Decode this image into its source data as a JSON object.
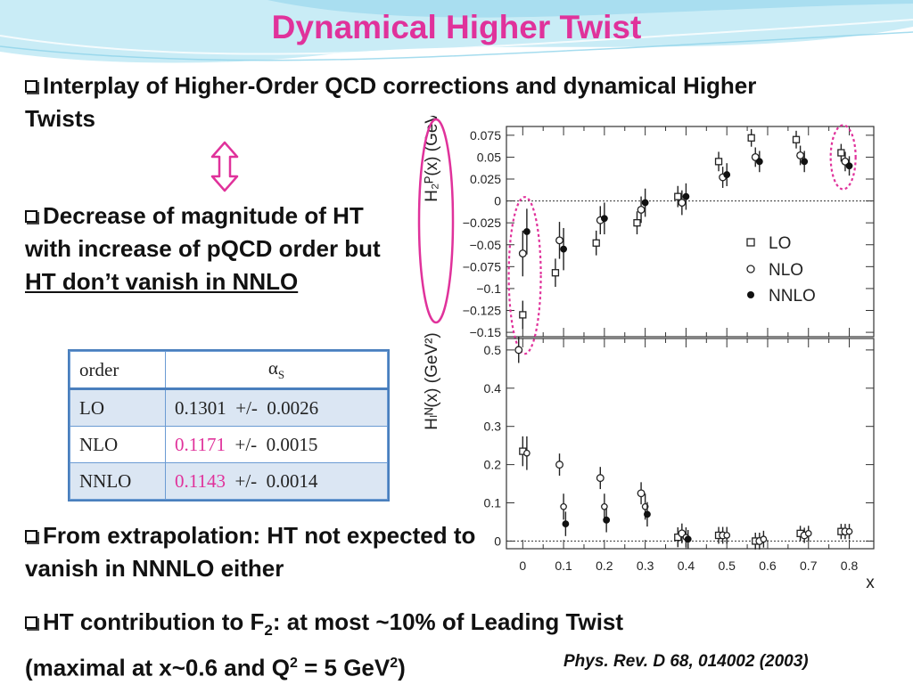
{
  "slide": {
    "title": "Dynamical Higher Twist",
    "bullets": {
      "b1": "Interplay of Higher-Order QCD corrections and dynamical Higher Twists",
      "b2_plain": "Decrease of magnitude of HT with increase of pQCD order but ",
      "b2_underlined": "HT don’t vanish in NNLO",
      "b3": "From extrapolation: HT not expected to vanish in NNNLO either",
      "b4_part1": "HT contribution to F",
      "b4_sub": "2",
      "b4_part2": ": at most ~10% of Leading Twist",
      "b4_part3": "(maximal at x~0.6 and Q",
      "b4_sup1": "2",
      "b4_part4": " = 5 GeV",
      "b4_sup2": "2",
      "b4_part5": ")"
    },
    "reference": "Phys. Rev. D 68, 014002 (2003)",
    "colors": {
      "title": "#e0329b",
      "highlight": "#e0329b",
      "table_border": "#4a7fbd",
      "table_shade": "#dbe6f3"
    }
  },
  "table": {
    "header": {
      "col1": "order",
      "col2": "α",
      "col2_sub": "S"
    },
    "rows": [
      {
        "order": "LO",
        "alpha": "0.1301",
        "sep": "  +/-  ",
        "err": "0.0026",
        "alpha_highlight": false
      },
      {
        "order": "NLO",
        "alpha": "0.1171",
        "sep": "  +/-  ",
        "err": "0.0015",
        "alpha_highlight": true
      },
      {
        "order": "NNLO",
        "alpha": "0.1143",
        "sep": "  +/-  ",
        "err": "0.0014",
        "alpha_highlight": true
      }
    ]
  },
  "chart_data": [
    {
      "type": "scatter",
      "ylabel": "H₂ᴾ(x)  (GeV²)",
      "xlim": [
        -0.04,
        0.86
      ],
      "ylim": [
        -0.155,
        0.085
      ],
      "yticks": [
        0.075,
        0.05,
        0.025,
        0,
        -0.025,
        -0.05,
        -0.075,
        -0.1,
        -0.125,
        -0.15
      ],
      "ytick_labels": [
        "0.075",
        "0.05",
        "0.025",
        "0",
        "−0.025",
        "−0.05",
        "−0.075",
        "−0.1",
        "−0.125",
        "−0.15"
      ],
      "reference_line": 0,
      "legend": [
        "LO",
        "NLO",
        "NNLO"
      ],
      "series": [
        {
          "name": "LO",
          "marker": "open-square",
          "x": [
            0.0,
            0.08,
            0.18,
            0.28,
            0.38,
            0.48,
            0.56,
            0.67,
            0.78
          ],
          "y": [
            -0.13,
            -0.082,
            -0.048,
            -0.025,
            0.005,
            0.045,
            0.072,
            0.07,
            0.055
          ],
          "err": [
            0.01,
            0.01,
            0.008,
            0.007,
            0.006,
            0.005,
            0.004,
            0.004,
            0.004
          ]
        },
        {
          "name": "NLO",
          "marker": "open-circle",
          "x": [
            0.0,
            0.09,
            0.19,
            0.29,
            0.39,
            0.49,
            0.57,
            0.68,
            0.79
          ],
          "y": [
            -0.06,
            -0.045,
            -0.022,
            -0.01,
            -0.002,
            0.027,
            0.05,
            0.052,
            0.045
          ],
          "err": [
            0.02,
            0.015,
            0.01,
            0.009,
            0.008,
            0.006,
            0.005,
            0.005,
            0.005
          ]
        },
        {
          "name": "NNLO",
          "marker": "filled-circle",
          "x": [
            0.01,
            0.1,
            0.2,
            0.3,
            0.4,
            0.5,
            0.58,
            0.69,
            0.8
          ],
          "y": [
            -0.035,
            -0.055,
            -0.02,
            -0.002,
            0.005,
            0.03,
            0.045,
            0.045,
            0.04
          ],
          "err": [
            0.02,
            0.018,
            0.012,
            0.01,
            0.009,
            0.007,
            0.006,
            0.006,
            0.005
          ]
        }
      ]
    },
    {
      "type": "scatter",
      "ylabel": "Hₗᴺ(x)  (GeV²)",
      "xlabel": "x",
      "xlim": [
        -0.04,
        0.86
      ],
      "ylim": [
        -0.02,
        0.53
      ],
      "yticks": [
        0.5,
        0.4,
        0.3,
        0.2,
        0.1,
        0
      ],
      "ytick_labels": [
        "0.5",
        "0.4",
        "0.3",
        "0.2",
        "0.1",
        "0"
      ],
      "xticks": [
        0,
        0.1,
        0.2,
        0.3,
        0.4,
        0.5,
        0.6,
        0.7,
        0.8
      ],
      "xtick_labels": [
        "0",
        "0.1",
        "0.2",
        "0.3",
        "0.4",
        "0.5",
        "0.6",
        "0.7",
        "0.8"
      ],
      "reference_line": 0,
      "series": [
        {
          "name": "LO",
          "marker": "open-square",
          "x": [
            0.0,
            0.38,
            0.48,
            0.57,
            0.68,
            0.78
          ],
          "y": [
            0.235,
            0.01,
            0.015,
            0.0,
            0.02,
            0.025
          ],
          "err": [
            0.025,
            0.012,
            0.008,
            0.008,
            0.006,
            0.006
          ]
        },
        {
          "name": "NLO",
          "marker": "open-circle",
          "x": [
            -0.01,
            0.09,
            0.19,
            0.29,
            0.39,
            0.49,
            0.58,
            0.69,
            0.79
          ],
          "y": [
            0.5,
            0.2,
            0.165,
            0.125,
            0.02,
            0.015,
            0.0,
            0.015,
            0.025
          ],
          "err": [
            0.02,
            0.015,
            0.015,
            0.015,
            0.012,
            0.008,
            0.008,
            0.006,
            0.006
          ]
        },
        {
          "name": "NNLO",
          "marker": "open-circle-small",
          "x": [
            0.01,
            0.1,
            0.2,
            0.3,
            0.4,
            0.5,
            0.59,
            0.7,
            0.8
          ],
          "y": [
            0.23,
            0.09,
            0.09,
            0.09,
            0.01,
            0.015,
            0.005,
            0.02,
            0.025
          ],
          "err": [
            0.03,
            0.02,
            0.02,
            0.02,
            0.012,
            0.008,
            0.008,
            0.006,
            0.006
          ]
        },
        {
          "name": "NNLO-dots",
          "marker": "filled-circle",
          "x": [
            0.105,
            0.205,
            0.305,
            0.405
          ],
          "y": [
            0.045,
            0.055,
            0.07,
            0.005
          ],
          "err": [
            0.018,
            0.018,
            0.018,
            0.01
          ]
        }
      ]
    }
  ]
}
